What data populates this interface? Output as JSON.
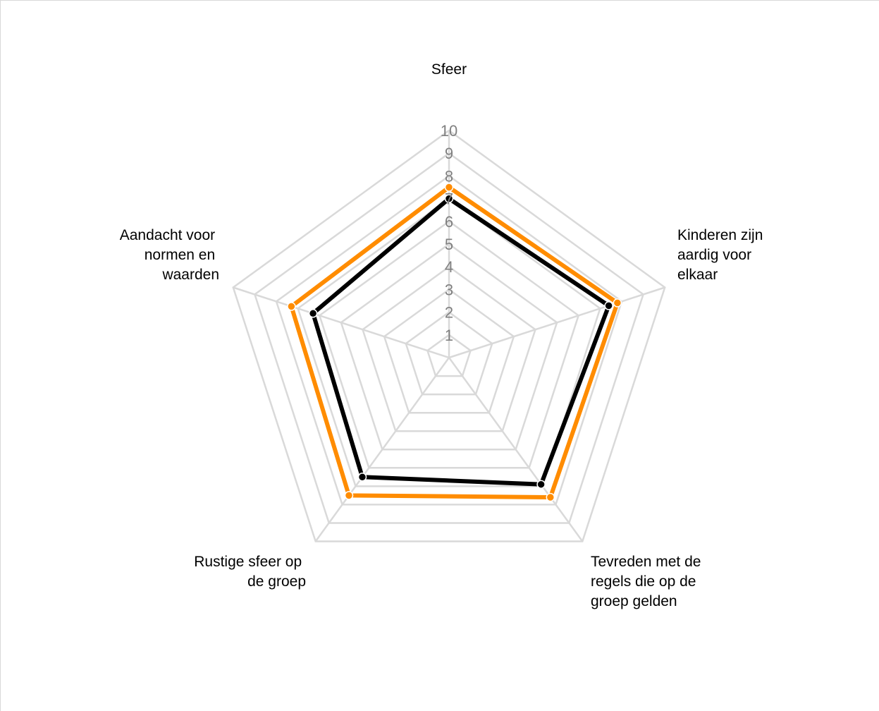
{
  "chart_data": {
    "type": "radar",
    "categories": [
      [
        "Sfeer"
      ],
      [
        "Kinderen zijn",
        "aardig voor",
        "elkaar"
      ],
      [
        "Tevreden met de",
        "regels die op de",
        "groep gelden"
      ],
      [
        "Rustige sfeer op",
        "de groep"
      ],
      [
        "Aandacht voor",
        "normen en",
        "waarden"
      ]
    ],
    "rlim": [
      0,
      10
    ],
    "ticks": [
      "1",
      "2",
      "3",
      "4",
      "5",
      "6",
      "7",
      "8",
      "9",
      "10"
    ],
    "grid": true,
    "legend": "none",
    "series": [
      {
        "color": "#ff8c00",
        "values": [
          7.5,
          7.8,
          7.6,
          7.5,
          7.3
        ]
      },
      {
        "color": "#000000",
        "values": [
          7.0,
          7.4,
          6.9,
          6.5,
          6.3
        ]
      }
    ]
  }
}
